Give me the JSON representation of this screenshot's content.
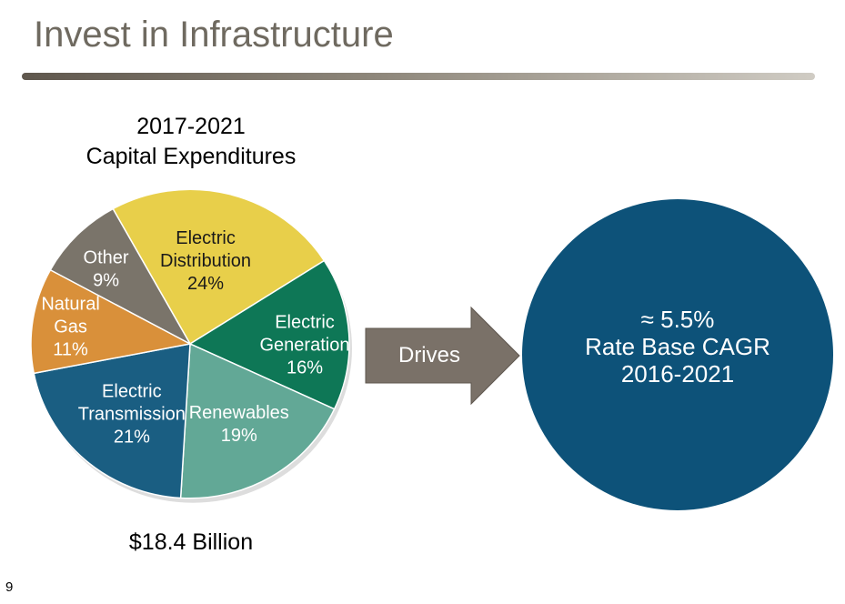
{
  "slide": {
    "title": "Invest in Infrastructure",
    "page_number": "9"
  },
  "chart_data": {
    "type": "pie",
    "title_lines": [
      "2017-2021",
      "Capital Expenditures"
    ],
    "total_label": "$18.4 Billion",
    "slices": [
      {
        "label_lines": [
          "Electric",
          "Distribution"
        ],
        "value_label": "24%",
        "value": 24,
        "color": "#e8cf4a",
        "text_color": "#1a1a1a"
      },
      {
        "label_lines": [
          "Electric",
          "Generation"
        ],
        "value_label": "16%",
        "value": 16,
        "color": "#0e7756",
        "text_color": "#ffffff"
      },
      {
        "label_lines": [
          "Renewables"
        ],
        "value_label": "19%",
        "value": 19,
        "color": "#62a896",
        "text_color": "#ffffff"
      },
      {
        "label_lines": [
          "Electric",
          "Transmission"
        ],
        "value_label": "21%",
        "value": 21,
        "color": "#1a5e82",
        "text_color": "#ffffff"
      },
      {
        "label_lines": [
          "Natural",
          "Gas"
        ],
        "value_label": "11%",
        "value": 11,
        "color": "#d9903a",
        "text_color": "#ffffff"
      },
      {
        "label_lines": [
          "Other"
        ],
        "value_label": "9%",
        "value": 9,
        "color": "#7a746a",
        "text_color": "#ffffff"
      }
    ]
  },
  "arrow": {
    "label": "Drives",
    "color": "#7a7168"
  },
  "highlight": {
    "lines": [
      "≈ 5.5%",
      "Rate Base CAGR",
      "2016-2021"
    ],
    "color": "#0d5279"
  }
}
